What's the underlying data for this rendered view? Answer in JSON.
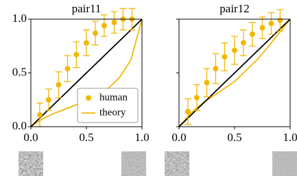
{
  "chart_data": [
    {
      "type": "scatter",
      "title": "pair11",
      "xlim": [
        0,
        1
      ],
      "ylim": [
        0,
        1
      ],
      "xticks": [
        {
          "value": 0,
          "label": "0.0"
        },
        0.5,
        {
          "value": 1,
          "label": "1.0"
        }
      ],
      "yticks": [
        {
          "value": 0,
          "label": "0.0"
        },
        0.5,
        {
          "value": 1,
          "label": "1.0"
        }
      ],
      "ytick_labels": true,
      "identity_line": true,
      "legend": "lower right",
      "series": [
        {
          "name": "human",
          "color": "#f2b705",
          "style": "markers",
          "x": [
            0.08,
            0.16,
            0.25,
            0.33,
            0.41,
            0.5,
            0.58,
            0.66,
            0.75,
            0.83,
            0.91
          ],
          "values": [
            0.11,
            0.25,
            0.39,
            0.54,
            0.67,
            0.78,
            0.87,
            0.94,
            0.97,
            1.0,
            1.0
          ],
          "errors": [
            0.11,
            0.1,
            0.12,
            0.12,
            0.12,
            0.12,
            0.11,
            0.1,
            0.1,
            0.1,
            0.1
          ]
        },
        {
          "name": "theory",
          "color": "#f2b705",
          "style": "line",
          "x": [
            0,
            0.1,
            0.2,
            0.3,
            0.4,
            0.5,
            0.6,
            0.7,
            0.8,
            0.9,
            1.0
          ],
          "values": [
            0,
            0.07,
            0.12,
            0.16,
            0.2,
            0.24,
            0.29,
            0.36,
            0.46,
            0.62,
            1.0
          ]
        }
      ]
    },
    {
      "type": "scatter",
      "title": "pair12",
      "xlim": [
        0,
        1
      ],
      "ylim": [
        0,
        1
      ],
      "xticks": [
        {
          "value": 0,
          "label": "0.0"
        },
        0.5,
        {
          "value": 1,
          "label": "1.0"
        }
      ],
      "yticks": [
        0,
        0.5,
        1
      ],
      "ytick_labels": false,
      "identity_line": true,
      "series": [
        {
          "name": "human",
          "color": "#f2b705",
          "style": "markers",
          "x": [
            0.08,
            0.16,
            0.25,
            0.33,
            0.41,
            0.5,
            0.58,
            0.66,
            0.75,
            0.83,
            0.91
          ],
          "values": [
            0.14,
            0.27,
            0.41,
            0.54,
            0.65,
            0.71,
            0.78,
            0.86,
            0.92,
            0.96,
            0.99
          ],
          "errors": [
            0.12,
            0.12,
            0.13,
            0.14,
            0.13,
            0.13,
            0.12,
            0.11,
            0.1,
            0.1,
            0.1
          ]
        },
        {
          "name": "theory",
          "color": "#f2b705",
          "style": "line",
          "x": [
            0,
            0.1,
            0.2,
            0.3,
            0.4,
            0.5,
            0.6,
            0.7,
            0.8,
            0.9,
            1.0
          ],
          "values": [
            0,
            0.12,
            0.21,
            0.28,
            0.35,
            0.42,
            0.52,
            0.62,
            0.74,
            0.87,
            1.0
          ]
        }
      ]
    }
  ]
}
